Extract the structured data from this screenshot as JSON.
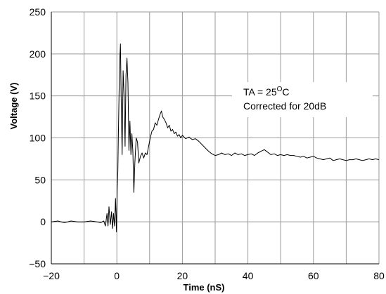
{
  "chart_data": {
    "type": "line",
    "xlabel": "Time  (nS)",
    "ylabel": "Voltage (V)",
    "xlim": [
      -20,
      80
    ],
    "ylim": [
      -50,
      250
    ],
    "xticks": [
      -20,
      0,
      20,
      40,
      60,
      80
    ],
    "yticks": [
      -50,
      0,
      50,
      100,
      150,
      200,
      250
    ],
    "x_gridlines": [
      -20,
      -10,
      0,
      10,
      20,
      30,
      40,
      50,
      60,
      70,
      80
    ],
    "y_gridlines": [
      -50,
      0,
      50,
      100,
      150,
      200,
      250
    ],
    "grid": true,
    "annotation": {
      "line1_prefix": "TA = 25",
      "line1_sup": "O",
      "line1_suffix": "C",
      "line2": "Corrected for 20dB"
    },
    "series": [
      {
        "color": "#000000",
        "points": [
          [
            -20,
            0
          ],
          [
            -18,
            1
          ],
          [
            -16,
            -1
          ],
          [
            -14,
            1
          ],
          [
            -12,
            0
          ],
          [
            -10,
            0
          ],
          [
            -8,
            1
          ],
          [
            -6,
            0
          ],
          [
            -5,
            -1
          ],
          [
            -4,
            1
          ],
          [
            -3.5,
            -5
          ],
          [
            -3,
            10
          ],
          [
            -2.7,
            -5
          ],
          [
            -2.4,
            18
          ],
          [
            -2,
            -3
          ],
          [
            -1.6,
            12
          ],
          [
            -1.3,
            -8
          ],
          [
            -1,
            10
          ],
          [
            -0.7,
            -5
          ],
          [
            -0.4,
            28
          ],
          [
            -0.1,
            -12
          ],
          [
            0.1,
            40
          ],
          [
            0.3,
            60
          ],
          [
            0.5,
            110
          ],
          [
            0.7,
            160
          ],
          [
            0.9,
            195
          ],
          [
            1.1,
            212
          ],
          [
            1.3,
            150
          ],
          [
            1.6,
            80
          ],
          [
            1.9,
            180
          ],
          [
            2.2,
            150
          ],
          [
            2.5,
            90
          ],
          [
            2.8,
            175
          ],
          [
            3.1,
            195
          ],
          [
            3.4,
            165
          ],
          [
            3.7,
            85
          ],
          [
            4,
            120
          ],
          [
            4.3,
            80
          ],
          [
            4.6,
            105
          ],
          [
            4.9,
            83
          ],
          [
            5.2,
            35
          ],
          [
            5.5,
            70
          ],
          [
            5.9,
            100
          ],
          [
            6.3,
            95
          ],
          [
            6.7,
            70
          ],
          [
            7.2,
            78
          ],
          [
            7.7,
            82
          ],
          [
            8.2,
            76
          ],
          [
            8.7,
            82
          ],
          [
            9.2,
            80
          ],
          [
            9.7,
            90
          ],
          [
            10.2,
            100
          ],
          [
            10.7,
            108
          ],
          [
            11.2,
            110
          ],
          [
            11.7,
            118
          ],
          [
            12.2,
            115
          ],
          [
            12.7,
            122
          ],
          [
            13.2,
            128
          ],
          [
            13.6,
            132
          ],
          [
            14,
            125
          ],
          [
            14.5,
            122
          ],
          [
            15,
            118
          ],
          [
            15.5,
            112
          ],
          [
            16,
            115
          ],
          [
            16.5,
            108
          ],
          [
            17,
            110
          ],
          [
            17.5,
            105
          ],
          [
            18,
            107
          ],
          [
            18.5,
            102
          ],
          [
            19,
            104
          ],
          [
            19.5,
            100
          ],
          [
            20,
            103
          ],
          [
            21,
            99
          ],
          [
            22,
            101
          ],
          [
            23,
            98
          ],
          [
            24,
            99
          ],
          [
            25,
            96
          ],
          [
            26,
            92
          ],
          [
            27,
            88
          ],
          [
            28,
            84
          ],
          [
            29,
            81
          ],
          [
            30,
            79
          ],
          [
            31,
            80
          ],
          [
            32,
            82
          ],
          [
            33,
            80
          ],
          [
            34,
            81
          ],
          [
            35,
            79
          ],
          [
            36,
            82
          ],
          [
            37,
            80
          ],
          [
            38,
            81
          ],
          [
            39,
            79
          ],
          [
            40,
            80
          ],
          [
            41,
            81
          ],
          [
            42,
            79
          ],
          [
            43,
            82
          ],
          [
            44,
            84
          ],
          [
            45,
            86
          ],
          [
            46,
            83
          ],
          [
            47,
            80
          ],
          [
            48,
            81
          ],
          [
            49,
            79
          ],
          [
            50,
            80
          ],
          [
            51,
            79
          ],
          [
            52,
            80
          ],
          [
            53,
            79
          ],
          [
            54,
            79
          ],
          [
            55,
            78
          ],
          [
            56,
            77
          ],
          [
            57,
            78
          ],
          [
            58,
            76
          ],
          [
            59,
            77
          ],
          [
            60,
            78
          ],
          [
            61,
            76
          ],
          [
            62,
            75
          ],
          [
            63,
            74
          ],
          [
            64,
            75
          ],
          [
            65,
            76
          ],
          [
            66,
            73
          ],
          [
            67,
            74
          ],
          [
            68,
            75
          ],
          [
            69,
            74
          ],
          [
            70,
            73
          ],
          [
            71,
            74
          ],
          [
            72,
            74
          ],
          [
            73,
            75
          ],
          [
            74,
            74
          ],
          [
            75,
            73
          ],
          [
            76,
            74
          ],
          [
            77,
            75
          ],
          [
            78,
            74
          ],
          [
            79,
            75
          ],
          [
            80,
            74
          ]
        ]
      }
    ]
  }
}
